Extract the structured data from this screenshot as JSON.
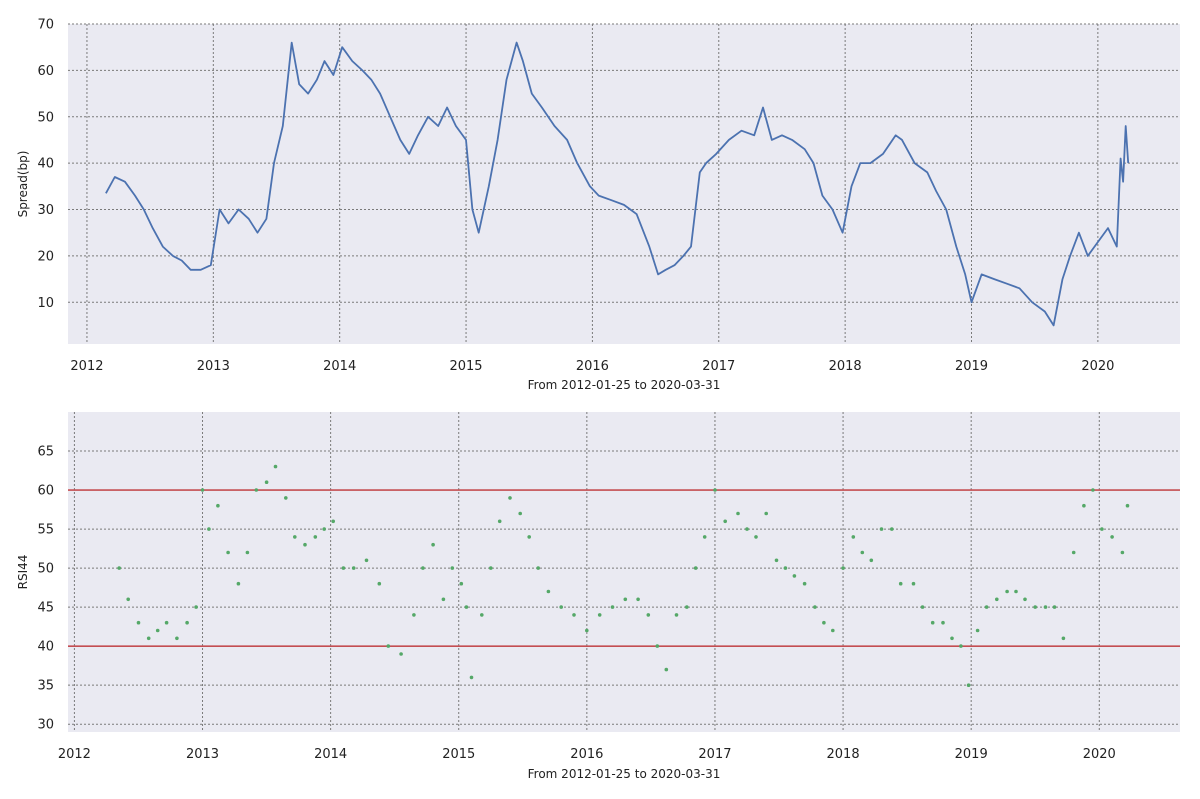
{
  "chart_data": [
    {
      "type": "line",
      "xlabel": "From 2012-01-25 to 2020-03-31",
      "ylabel": "Spread(bp)",
      "xlim": [
        2011.85,
        2020.65
      ],
      "ylim": [
        1,
        70
      ],
      "x_ticks": [
        "2012",
        "2013",
        "2014",
        "2015",
        "2016",
        "2017",
        "2018",
        "2019",
        "2020"
      ],
      "y_ticks": [
        10,
        20,
        30,
        40,
        50,
        60,
        70
      ],
      "grid": true,
      "color": "#4c72b0",
      "series": [
        {
          "x": [
            2012.15,
            2012.22,
            2012.3,
            2012.38,
            2012.45,
            2012.52,
            2012.6,
            2012.68,
            2012.75,
            2012.82,
            2012.9,
            2012.98,
            2013.05,
            2013.12,
            2013.2,
            2013.28,
            2013.35,
            2013.42,
            2013.48,
            2013.55,
            2013.62,
            2013.68,
            2013.75,
            2013.82,
            2013.88,
            2013.95,
            2014.02,
            2014.1,
            2014.18,
            2014.25,
            2014.32,
            2014.4,
            2014.48,
            2014.55,
            2014.62,
            2014.7,
            2014.78,
            2014.85,
            2014.92,
            2015.0,
            2015.05,
            2015.1,
            2015.18,
            2015.25,
            2015.32,
            2015.4,
            2015.45,
            2015.52,
            2015.6,
            2015.7,
            2015.8,
            2015.88,
            2015.98,
            2016.05,
            2016.15,
            2016.25,
            2016.35,
            2016.45,
            2016.52,
            2016.58,
            2016.65,
            2016.72,
            2016.78,
            2016.85,
            2016.9,
            2016.98,
            2017.08,
            2017.18,
            2017.28,
            2017.35,
            2017.42,
            2017.5,
            2017.58,
            2017.68,
            2017.75,
            2017.82,
            2017.9,
            2017.98,
            2018.05,
            2018.12,
            2018.2,
            2018.3,
            2018.4,
            2018.45,
            2018.55,
            2018.65,
            2018.72,
            2018.8,
            2018.88,
            2018.95,
            2019.0,
            2019.08,
            2019.18,
            2019.28,
            2019.38,
            2019.48,
            2019.58,
            2019.65,
            2019.72,
            2019.78,
            2019.85,
            2019.92,
            2020.0,
            2020.08,
            2020.15,
            2020.18,
            2020.2,
            2020.22,
            2020.24
          ],
          "values": [
            33.5,
            37,
            36,
            33,
            30,
            26,
            22,
            20,
            19,
            17,
            17,
            18,
            30,
            27,
            30,
            28,
            25,
            28,
            40,
            48,
            66,
            57,
            55,
            58,
            62,
            59,
            65,
            62,
            60,
            58,
            55,
            50,
            45,
            42,
            46,
            50,
            48,
            52,
            48,
            45,
            30,
            25,
            35,
            45,
            58,
            66,
            62,
            55,
            52,
            48,
            45,
            40,
            35,
            33,
            32,
            31,
            29,
            22,
            16,
            17,
            18,
            20,
            22,
            38,
            40,
            42,
            45,
            47,
            46,
            52,
            45,
            46,
            45,
            43,
            40,
            33,
            30,
            25,
            35,
            40,
            40,
            42,
            46,
            45,
            40,
            38,
            34,
            30,
            22,
            16,
            10,
            16,
            15,
            14,
            13,
            10,
            8,
            5,
            15,
            20,
            25,
            20,
            23,
            26,
            22,
            41,
            36,
            48,
            40
          ]
        }
      ]
    },
    {
      "type": "scatter",
      "xlabel": "From 2012-01-25 to 2020-03-31",
      "ylabel": "RSI44",
      "xlim": [
        2011.95,
        2020.63
      ],
      "ylim": [
        29,
        70
      ],
      "x_ticks": [
        "2012",
        "2013",
        "2014",
        "2015",
        "2016",
        "2017",
        "2018",
        "2019",
        "2020"
      ],
      "y_ticks": [
        30,
        35,
        40,
        45,
        50,
        55,
        60,
        65
      ],
      "grid": true,
      "color": "#55a868",
      "reference_lines": [
        {
          "y": 60,
          "color": "#c44e52"
        },
        {
          "y": 40,
          "color": "#c44e52"
        }
      ],
      "series": [
        {
          "x": [
            2012.35,
            2012.42,
            2012.5,
            2012.58,
            2012.65,
            2012.72,
            2012.8,
            2012.88,
            2012.95,
            2013.0,
            2013.05,
            2013.12,
            2013.2,
            2013.28,
            2013.35,
            2013.42,
            2013.5,
            2013.57,
            2013.65,
            2013.72,
            2013.8,
            2013.88,
            2013.95,
            2014.02,
            2014.1,
            2014.18,
            2014.28,
            2014.38,
            2014.45,
            2014.55,
            2014.65,
            2014.72,
            2014.8,
            2014.88,
            2014.95,
            2015.02,
            2015.06,
            2015.1,
            2015.18,
            2015.25,
            2015.32,
            2015.4,
            2015.48,
            2015.55,
            2015.62,
            2015.7,
            2015.8,
            2015.9,
            2016.0,
            2016.1,
            2016.2,
            2016.3,
            2016.4,
            2016.48,
            2016.55,
            2016.62,
            2016.7,
            2016.78,
            2016.85,
            2016.92,
            2017.0,
            2017.08,
            2017.18,
            2017.25,
            2017.32,
            2017.4,
            2017.48,
            2017.55,
            2017.62,
            2017.7,
            2017.78,
            2017.85,
            2017.92,
            2018.0,
            2018.08,
            2018.15,
            2018.22,
            2018.3,
            2018.38,
            2018.45,
            2018.55,
            2018.62,
            2018.7,
            2018.78,
            2018.85,
            2018.92,
            2018.98,
            2019.05,
            2019.12,
            2019.2,
            2019.28,
            2019.35,
            2019.42,
            2019.5,
            2019.58,
            2019.65,
            2019.72,
            2019.8,
            2019.88,
            2019.95,
            2020.02,
            2020.1,
            2020.18,
            2020.22
          ],
          "values": [
            50,
            46,
            43,
            41,
            42,
            43,
            41,
            43,
            45,
            60,
            55,
            58,
            52,
            48,
            52,
            60,
            61,
            63,
            59,
            54,
            53,
            54,
            55,
            56,
            50,
            50,
            51,
            48,
            40,
            39,
            44,
            50,
            53,
            46,
            50,
            48,
            45,
            36,
            44,
            50,
            56,
            59,
            57,
            54,
            50,
            47,
            45,
            44,
            42,
            44,
            45,
            46,
            46,
            44,
            40,
            37,
            44,
            45,
            50,
            54,
            60,
            56,
            57,
            55,
            54,
            57,
            51,
            50,
            49,
            48,
            45,
            43,
            42,
            50,
            54,
            52,
            51,
            55,
            55,
            48,
            48,
            45,
            43,
            43,
            41,
            40,
            35,
            42,
            45,
            46,
            47,
            47,
            46,
            45,
            45,
            45,
            41,
            52,
            58,
            60,
            55,
            54,
            52,
            58
          ]
        }
      ]
    }
  ]
}
